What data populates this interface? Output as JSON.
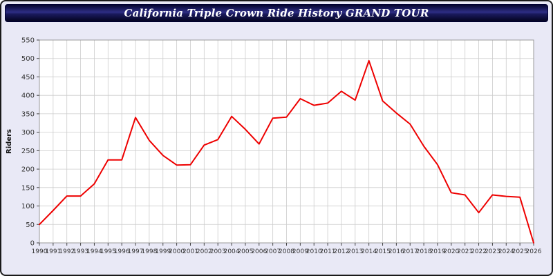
{
  "window": {
    "title": "California Triple Crown Ride History GRAND TOUR"
  },
  "colors": {
    "line": "#ee0000",
    "page_background": "#e9e9f6",
    "plot_background": "#ffffff",
    "grid": "#cccccc",
    "axis_frame": "#999999",
    "tick_text": "#333333",
    "title_bar": "#1a1a5e"
  },
  "chart_data": {
    "type": "line",
    "title": "California Triple Crown Ride History GRAND TOUR",
    "xlabel": "",
    "ylabel": "Riders",
    "ylim": [
      0,
      550
    ],
    "ytick_step": 50,
    "grid": true,
    "legend": "none",
    "x": [
      1990,
      1991,
      1992,
      1993,
      1994,
      1995,
      1996,
      1997,
      1998,
      1999,
      2000,
      2001,
      2002,
      2003,
      2004,
      2005,
      2006,
      2007,
      2008,
      2009,
      2010,
      2011,
      2012,
      2013,
      2014,
      2015,
      2016,
      2017,
      2018,
      2019,
      2020,
      2021,
      2022,
      2023,
      2024,
      2025,
      2026
    ],
    "values": [
      50,
      88,
      127,
      127,
      160,
      225,
      225,
      340,
      278,
      237,
      211,
      212,
      265,
      280,
      343,
      308,
      268,
      338,
      341,
      391,
      373,
      379,
      411,
      387,
      494,
      385,
      352,
      322,
      262,
      212,
      136,
      130,
      82,
      130,
      126,
      124,
      0
    ]
  }
}
